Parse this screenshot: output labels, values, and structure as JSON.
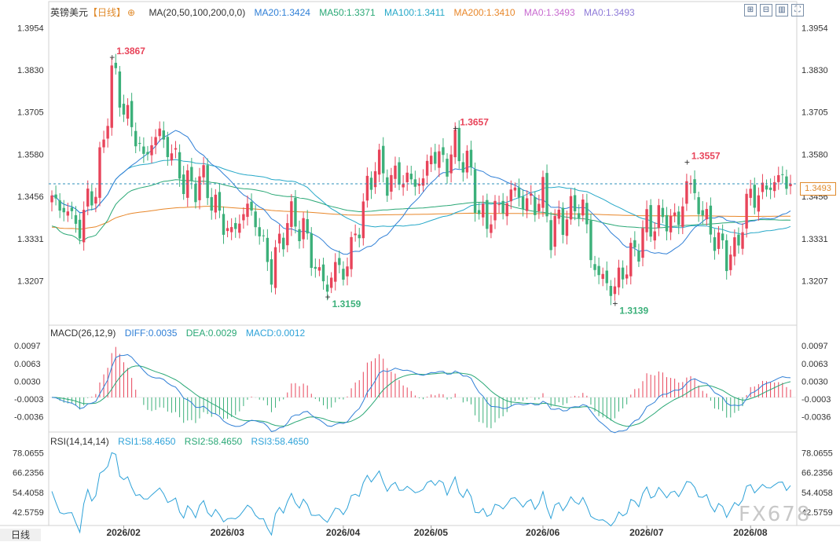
{
  "header": {
    "symbol": "英镑美元",
    "period": "【日线】",
    "ma_label": "MA(20,50,100,200,0,0)",
    "ma20": "MA20:1.3424",
    "ma50": "MA50:1.3371",
    "ma100": "MA100:1.3411",
    "ma200": "MA200:1.3410",
    "ma0a": "MA0:1.3493",
    "ma0b": "MA0:1.3493"
  },
  "macd_header": {
    "label": "MACD(26,12,9)",
    "diff": "DIFF:0.0035",
    "dea": "DEA:0.0029",
    "macd": "MACD:0.0012"
  },
  "rsi_header": {
    "label": "RSI(14,14,14)",
    "rsi1": "RSI1:58.4650",
    "rsi2": "RSI2:58.4650",
    "rsi3": "RSI3:58.4650"
  },
  "current_price_tag": "1.3493",
  "period_tag": "日线",
  "watermark": "FX678",
  "colors": {
    "up": "#e8445a",
    "down": "#3cb07a",
    "ma20": "#2f7fd6",
    "ma50": "#2aa876",
    "ma100": "#26a8c8",
    "ma200": "#e8872a",
    "rsi": "#2ea2d8"
  },
  "chart_data": [
    {
      "type": "candlestick",
      "title": "英镑美元 日线",
      "y_ticks": [
        "1.3954",
        "1.3830",
        "1.3705",
        "1.3580",
        "1.3456",
        "1.3331",
        "1.3207"
      ],
      "ylim": [
        1.308,
        1.3985
      ],
      "x_ticks": [
        "2026/02",
        "2026/03",
        "2026/04",
        "2026/05",
        "2026/06",
        "2026/07",
        "2026/08"
      ],
      "annotations": [
        {
          "label": "1.3867",
          "value": 1.3867
        },
        {
          "label": "1.3159",
          "value": 1.3159
        },
        {
          "label": "1.3657",
          "value": 1.3657
        },
        {
          "label": "1.3139",
          "value": 1.3139
        },
        {
          "label": "1.3557",
          "value": 1.3557
        }
      ],
      "current_price": 1.3493,
      "anchors": [
        [
          0,
          1.344
        ],
        [
          3,
          1.342
        ],
        [
          5,
          1.3395
        ],
        [
          7,
          1.336
        ],
        [
          9,
          1.3445
        ],
        [
          11,
          1.348
        ],
        [
          13,
          1.362
        ],
        [
          15,
          1.382
        ],
        [
          17,
          1.376
        ],
        [
          19,
          1.368
        ],
        [
          21,
          1.364
        ],
        [
          23,
          1.356
        ],
        [
          25,
          1.362
        ],
        [
          27,
          1.364
        ],
        [
          29,
          1.36
        ],
        [
          31,
          1.356
        ],
        [
          33,
          1.35
        ],
        [
          35,
          1.348
        ],
        [
          37,
          1.351
        ],
        [
          39,
          1.348
        ],
        [
          41,
          1.342
        ],
        [
          43,
          1.338
        ],
        [
          45,
          1.334
        ],
        [
          47,
          1.339
        ],
        [
          49,
          1.342
        ],
        [
          51,
          1.339
        ],
        [
          53,
          1.33
        ],
        [
          55,
          1.324
        ],
        [
          57,
          1.331
        ],
        [
          59,
          1.339
        ],
        [
          61,
          1.338
        ],
        [
          63,
          1.336
        ],
        [
          65,
          1.328
        ],
        [
          67,
          1.322
        ],
        [
          69,
          1.319
        ],
        [
          71,
          1.325
        ],
        [
          73,
          1.323
        ],
        [
          75,
          1.33
        ],
        [
          77,
          1.338
        ],
        [
          79,
          1.347
        ],
        [
          81,
          1.356
        ],
        [
          83,
          1.352
        ],
        [
          85,
          1.35
        ],
        [
          87,
          1.352
        ],
        [
          89,
          1.35
        ],
        [
          91,
          1.35
        ],
        [
          93,
          1.35
        ],
        [
          95,
          1.359
        ],
        [
          97,
          1.356
        ],
        [
          99,
          1.356
        ],
        [
          101,
          1.36
        ],
        [
          103,
          1.357
        ],
        [
          105,
          1.352
        ],
        [
          107,
          1.34
        ],
        [
          109,
          1.338
        ],
        [
          111,
          1.342
        ],
        [
          113,
          1.342
        ],
        [
          115,
          1.347
        ],
        [
          117,
          1.346
        ],
        [
          119,
          1.343
        ],
        [
          121,
          1.344
        ],
        [
          123,
          1.346
        ],
        [
          125,
          1.335
        ],
        [
          127,
          1.338
        ],
        [
          129,
          1.34
        ],
        [
          131,
          1.342
        ],
        [
          133,
          1.343
        ],
        [
          135,
          1.328
        ],
        [
          137,
          1.322
        ],
        [
          139,
          1.32
        ],
        [
          141,
          1.318
        ],
        [
          143,
          1.324
        ],
        [
          145,
          1.327
        ],
        [
          147,
          1.332
        ],
        [
          149,
          1.337
        ],
        [
          151,
          1.338
        ],
        [
          153,
          1.339
        ],
        [
          155,
          1.339
        ],
        [
          157,
          1.338
        ],
        [
          159,
          1.35
        ],
        [
          161,
          1.346
        ],
        [
          163,
          1.34
        ],
        [
          165,
          1.336
        ],
        [
          167,
          1.331
        ],
        [
          169,
          1.329
        ],
        [
          171,
          1.328
        ],
        [
          173,
          1.339
        ],
        [
          175,
          1.346
        ],
        [
          177,
          1.346
        ],
        [
          179,
          1.348
        ],
        [
          181,
          1.35
        ],
        [
          183,
          1.351
        ],
        [
          185,
          1.3493
        ]
      ]
    },
    {
      "type": "line",
      "title": "MACD(26,12,9)",
      "y_ticks": [
        "0.0097",
        "0.0063",
        "0.0030",
        "-0.0003",
        "-0.0036"
      ],
      "ylim": [
        -0.0065,
        0.0112
      ],
      "series": [
        {
          "name": "DIFF",
          "value": 0.0035
        },
        {
          "name": "DEA",
          "value": 0.0029
        },
        {
          "name": "MACD",
          "value": 0.0012
        }
      ]
    },
    {
      "type": "line",
      "title": "RSI(14,14,14)",
      "y_ticks": [
        "78.0655",
        "66.2356",
        "54.4058",
        "42.5759"
      ],
      "ylim": [
        36,
        83
      ],
      "series": [
        {
          "name": "RSI1",
          "value": 58.465
        },
        {
          "name": "RSI2",
          "value": 58.465
        },
        {
          "name": "RSI3",
          "value": 58.465
        }
      ]
    }
  ]
}
